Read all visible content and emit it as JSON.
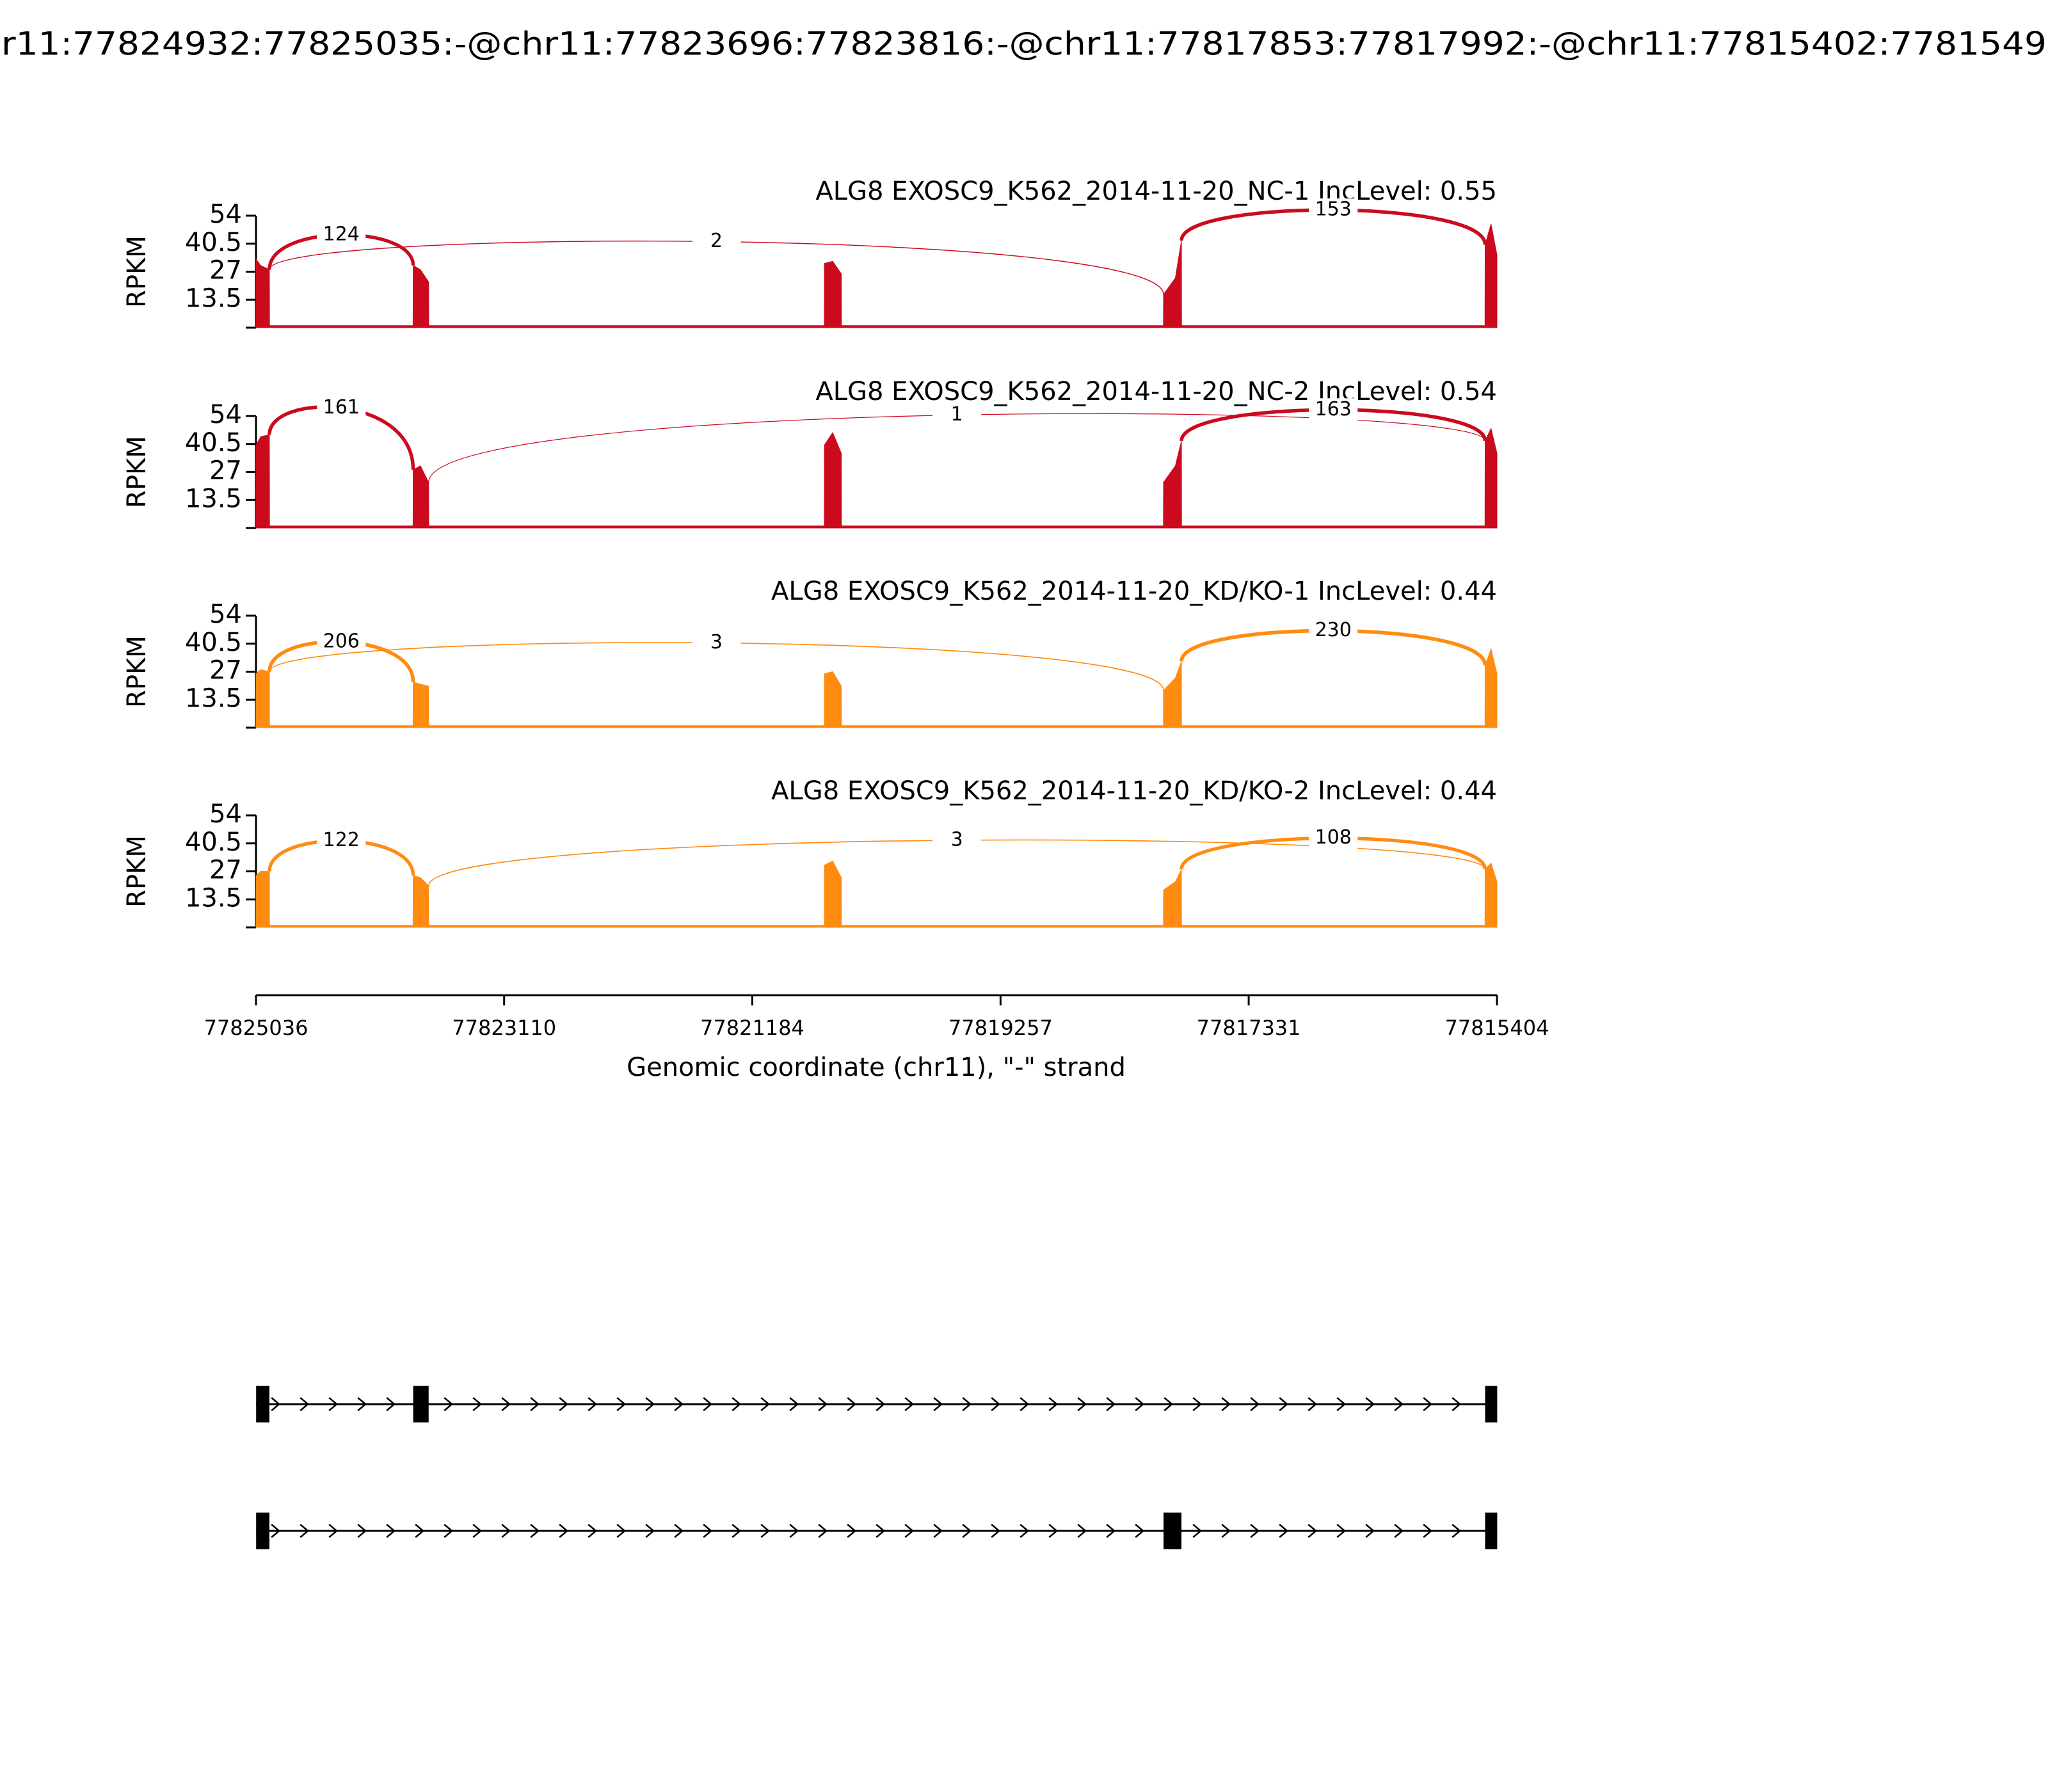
{
  "chart_data": {
    "type": "sashimi",
    "title": "r11:77824932:77825035:-@chr11:77823696:77823816:-@chr11:77817853:77817992:-@chr11:77815402:7781549",
    "x_label": "Genomic coordinate (chr11), \"-\" strand",
    "y_label": "RPKM",
    "xlim": [
      77825036,
      77815404
    ],
    "xticks": [
      77825036,
      77823110,
      77821184,
      77819257,
      77817331,
      77815404
    ],
    "tracks": [
      {
        "title": "ALG8 EXOSC9_K562_2014-11-20_NC-1 IncLevel: 0.55",
        "color": "#cc0a1e",
        "ylim": [
          0,
          54
        ],
        "yticks": [
          13.5,
          27,
          40.5,
          54
        ],
        "coverage": {
          "x": [
            77825036,
            77825035,
            77825000,
            77824932,
            77824931,
            77823817,
            77823816,
            77823760,
            77823696,
            77823695,
            77820625,
            77820624,
            77820560,
            77820493,
            77820492,
            77817993,
            77817992,
            77817900,
            77817853,
            77817852,
            77815497,
            77815496,
            77815450,
            77815404
          ],
          "values": [
            0,
            33,
            30,
            28,
            1,
            1,
            30,
            28,
            22,
            1,
            1,
            31,
            32,
            26,
            1,
            1,
            16,
            24,
            42,
            1,
            1,
            40,
            50,
            35
          ]
        },
        "junctions": [
          {
            "start": 77824932,
            "end": 77823816,
            "count": 124
          },
          {
            "start": 77824932,
            "end": 77817992,
            "count": 2
          },
          {
            "start": 77817853,
            "end": 77815496,
            "count": 153
          }
        ]
      },
      {
        "title": "ALG8 EXOSC9_K562_2014-11-20_NC-2 IncLevel: 0.54",
        "color": "#cc0a1e",
        "ylim": [
          0,
          54
        ],
        "yticks": [
          13.5,
          27,
          40.5,
          54
        ],
        "coverage": {
          "x": [
            77825036,
            77825035,
            77825000,
            77824932,
            77824931,
            77823817,
            77823816,
            77823760,
            77823696,
            77823695,
            77820625,
            77820624,
            77820560,
            77820493,
            77820492,
            77817993,
            77817992,
            77817900,
            77817853,
            77817852,
            77815497,
            77815496,
            77815450,
            77815404
          ],
          "values": [
            0,
            40,
            44,
            45,
            1,
            1,
            28,
            30,
            22,
            1,
            1,
            40,
            46,
            36,
            1,
            1,
            22,
            30,
            42,
            1,
            1,
            42,
            48,
            36
          ]
        },
        "junctions": [
          {
            "start": 77824932,
            "end": 77823816,
            "count": 161
          },
          {
            "start": 77823696,
            "end": 77815496,
            "count": 1
          },
          {
            "start": 77817853,
            "end": 77815496,
            "count": 163
          }
        ]
      },
      {
        "title": "ALG8 EXOSC9_K562_2014-11-20_KD/KO-1 IncLevel: 0.44",
        "color": "#ff8c10",
        "ylim": [
          0,
          54
        ],
        "yticks": [
          13.5,
          27,
          40.5,
          54
        ],
        "coverage": {
          "x": [
            77825036,
            77825035,
            77825000,
            77824932,
            77824931,
            77823817,
            77823816,
            77823760,
            77823696,
            77823695,
            77820625,
            77820624,
            77820560,
            77820493,
            77820492,
            77817993,
            77817992,
            77817900,
            77817853,
            77817852,
            77815497,
            77815496,
            77815450,
            77815404
          ],
          "values": [
            0,
            26,
            28,
            27,
            1,
            1,
            22,
            21,
            20,
            1,
            1,
            26,
            27,
            20,
            1,
            1,
            18,
            24,
            32,
            1,
            1,
            30,
            38,
            26
          ]
        },
        "junctions": [
          {
            "start": 77824932,
            "end": 77823816,
            "count": 206
          },
          {
            "start": 77824932,
            "end": 77817992,
            "count": 3
          },
          {
            "start": 77817853,
            "end": 77815496,
            "count": 230
          }
        ]
      },
      {
        "title": "ALG8 EXOSC9_K562_2014-11-20_KD/KO-2 IncLevel: 0.44",
        "color": "#ff8c10",
        "ylim": [
          0,
          54
        ],
        "yticks": [
          13.5,
          27,
          40.5,
          54
        ],
        "coverage": {
          "x": [
            77825036,
            77825035,
            77825000,
            77824932,
            77824931,
            77823817,
            77823816,
            77823760,
            77823696,
            77823695,
            77820625,
            77820624,
            77820560,
            77820493,
            77820492,
            77817993,
            77817992,
            77817900,
            77817853,
            77817852,
            77815497,
            77815496,
            77815450,
            77815404
          ],
          "values": [
            0,
            25,
            27,
            27,
            1,
            1,
            25,
            24,
            20,
            1,
            1,
            30,
            32,
            24,
            1,
            1,
            18,
            22,
            28,
            1,
            1,
            28,
            31,
            22
          ]
        },
        "junctions": [
          {
            "start": 77824932,
            "end": 77823816,
            "count": 122
          },
          {
            "start": 77823696,
            "end": 77815496,
            "count": 3
          },
          {
            "start": 77817853,
            "end": 77815496,
            "count": 108
          }
        ]
      }
    ],
    "transcripts": [
      {
        "exons": [
          [
            77825035,
            77824932
          ],
          [
            77823816,
            77823696
          ],
          [
            77815496,
            77815402
          ]
        ]
      },
      {
        "exons": [
          [
            77825035,
            77824932
          ],
          [
            77817992,
            77817853
          ],
          [
            77815496,
            77815402
          ]
        ]
      }
    ]
  }
}
